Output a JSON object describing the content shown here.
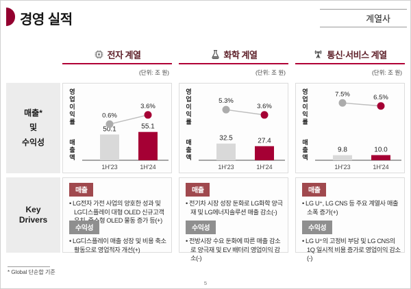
{
  "page": {
    "title": "경영 실적",
    "affiliates_button": "계열사",
    "footnote": "* Global 단순합 기준",
    "page_number": "5"
  },
  "side_labels": {
    "sales_line1": "매출*",
    "sales_line2": "및",
    "sales_line3": "수익성",
    "drivers_block": "Key Drivers"
  },
  "colors": {
    "brand_red": "#A50034",
    "dark_maroon": "#5D1F28",
    "bar_gray": "#D9D9D9",
    "dot_gray": "#ACACAC",
    "badge_sales": "#A0494E",
    "badge_profit": "#8F8F8F"
  },
  "columns": [
    {
      "title": "전자 계열",
      "icon": "chip-icon",
      "unit_note": "(단위: 조 원)",
      "drivers": [
        {
          "badge": "매출",
          "text": "LG전자 가전 사업의 양호한 성과 및 LG디스플레이 대형 OLED 신규고객 유치, 중소형 OLED 물동 증가 등(+)"
        },
        {
          "badge": "수익성",
          "text": "LG디스플레이 매출 성장 및 비용 축소 활동으로 영업적자 개선(+)"
        }
      ]
    },
    {
      "title": "화학 계열",
      "icon": "flask-icon",
      "unit_note": "(단위: 조 원)",
      "drivers": [
        {
          "badge": "매출",
          "text": "전기차 시장 성장 둔화로 LG화학 양극재 및 LG에너지솔루션 매출 감소(-)"
        },
        {
          "badge": "수익성",
          "text": "전방시장 수요 둔화에 따른 매출 감소로 양극재 및 EV 배터리 영업이익 감소(-)"
        }
      ]
    },
    {
      "title": "통신·서비스 계열",
      "icon": "antenna-icon",
      "unit_note": "(단위: 조 원)",
      "drivers": [
        {
          "badge": "매출",
          "text": "LG U⁺, LG CNS 등 주요 계열사 매출 소폭 증가(+)"
        },
        {
          "badge": "수익성",
          "text": "LG U⁺의 고정비 부담 및 LG CNS의 1Q 일시적 비용 증가로 영업이익 감소(-)"
        }
      ]
    }
  ],
  "chart_data": [
    {
      "type": "bar",
      "title": "전자 계열",
      "categories": [
        "1H'23",
        "1H'24"
      ],
      "series": [
        {
          "name": "매출액",
          "type": "bar",
          "values": [
            50.1,
            55.1
          ],
          "unit": "조 원"
        },
        {
          "name": "영업이익률",
          "type": "line",
          "values": [
            0.6,
            3.6
          ],
          "unit": "%"
        }
      ],
      "ylabel_top": "영업이익률",
      "ylabel_bottom": "매출액",
      "legend": "none",
      "grid": "off"
    },
    {
      "type": "bar",
      "title": "화학 계열",
      "categories": [
        "1H'23",
        "1H'24"
      ],
      "series": [
        {
          "name": "매출액",
          "type": "bar",
          "values": [
            32.5,
            27.4
          ],
          "unit": "조 원"
        },
        {
          "name": "영업이익률",
          "type": "line",
          "values": [
            5.3,
            3.6
          ],
          "unit": "%"
        }
      ],
      "ylabel_top": "영업이익률",
      "ylabel_bottom": "매출액",
      "legend": "none",
      "grid": "off"
    },
    {
      "type": "bar",
      "title": "통신·서비스 계열",
      "categories": [
        "1H'23",
        "1H'24"
      ],
      "series": [
        {
          "name": "매출액",
          "type": "bar",
          "values": [
            9.8,
            10.0
          ],
          "unit": "조 원"
        },
        {
          "name": "영업이익률",
          "type": "line",
          "values": [
            7.5,
            6.5
          ],
          "unit": "%"
        }
      ],
      "ylabel_top": "영업이익률",
      "ylabel_bottom": "매출액",
      "legend": "none",
      "grid": "off"
    }
  ]
}
